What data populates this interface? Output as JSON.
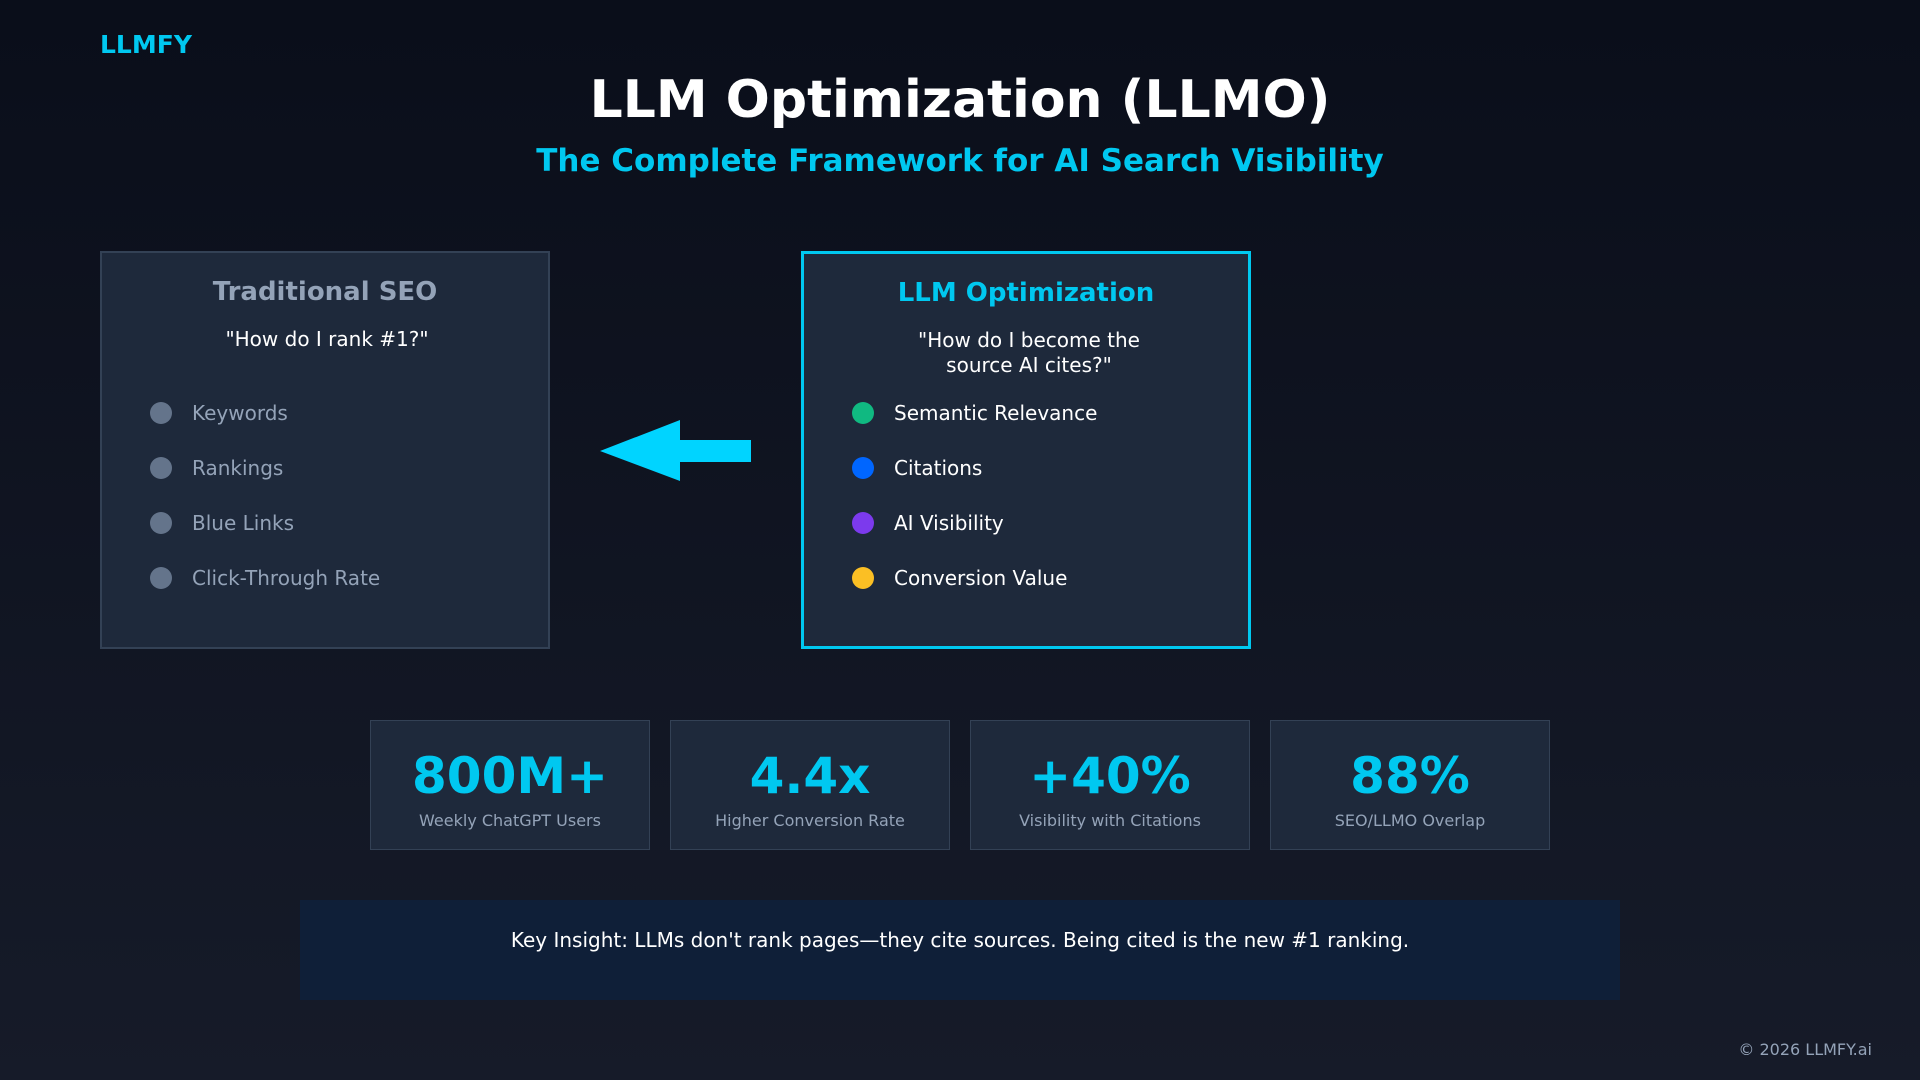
{
  "brand": "LLMFY",
  "header": {
    "title": "LLM Optimization (LLMO)",
    "subtitle": "The Complete Framework for AI Search Visibility"
  },
  "cards": [
    {
      "title": "Traditional SEO",
      "question": "\"How do I rank #1?\"",
      "items": [
        "Keywords",
        "Rankings",
        "Blue Links",
        "Click-Through Rate"
      ]
    },
    {
      "title": "LLM Optimization",
      "question": "\"How do I become the source AI cites?\"",
      "items": [
        "Semantic Relevance",
        "Citations",
        "AI Visibility",
        "Conversion Value"
      ]
    }
  ],
  "stats": [
    {
      "value": "800M+",
      "label": "Weekly ChatGPT Users"
    },
    {
      "value": "4.4x",
      "label": "Higher Conversion Rate"
    },
    {
      "value": "+40%",
      "label": "Visibility with Citations"
    },
    {
      "value": "88%",
      "label": "SEO/LLMO Overlap"
    }
  ],
  "insight": "Key Insight: LLMs don't rank pages—they cite sources. Being cited is the new #1 ranking.",
  "footer": "© 2026 LLMFY.ai"
}
